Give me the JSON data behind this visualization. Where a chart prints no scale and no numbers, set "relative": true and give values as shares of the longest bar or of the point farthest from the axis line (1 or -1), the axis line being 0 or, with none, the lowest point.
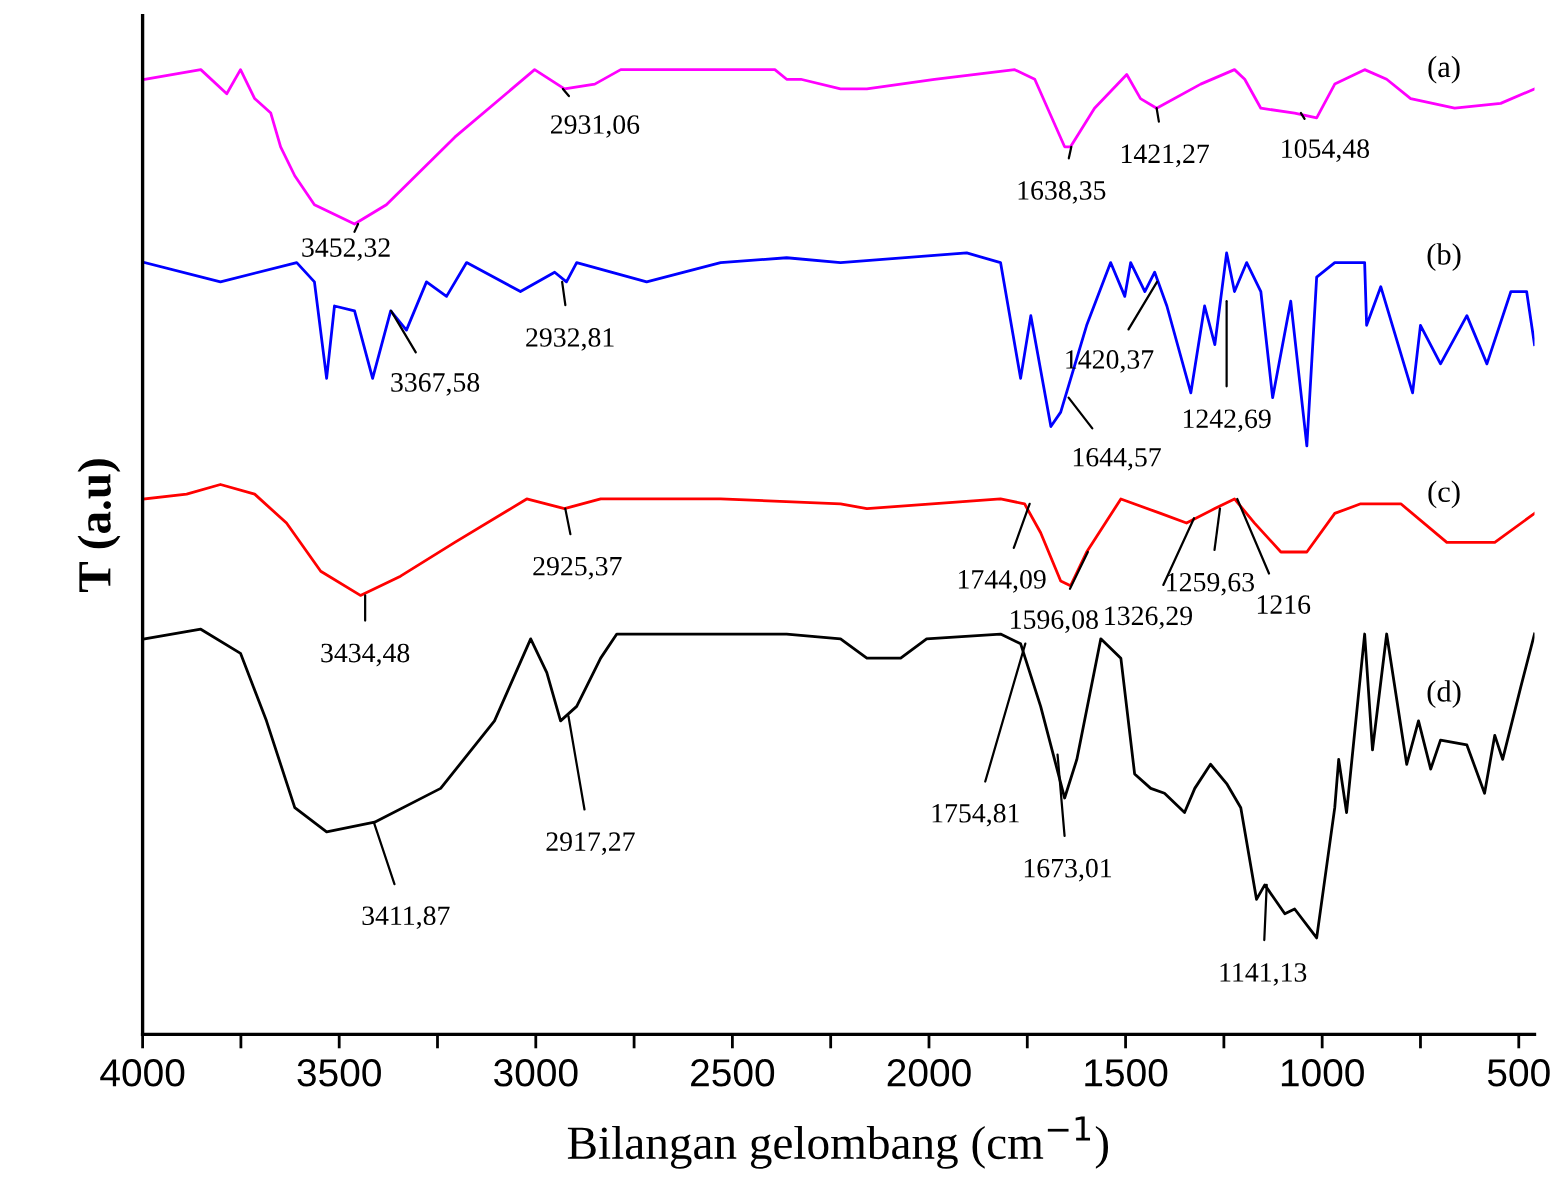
{
  "chart_data": {
    "type": "line",
    "relative": true,
    "xlabel": "Bilangan gelombang (cm$^{−1}$)",
    "ylabel": "T (a.u)",
    "xlim": [
      4000,
      460
    ],
    "xticks": [
      4000,
      {
        "value": 3750,
        "label": null
      },
      3500,
      {
        "value": 3250,
        "label": null
      },
      3000,
      {
        "value": 2750,
        "label": null
      },
      2500,
      {
        "value": 2250,
        "label": null
      },
      2000,
      {
        "value": 1750,
        "label": null
      },
      1500,
      {
        "value": 1250,
        "label": null
      },
      1000,
      {
        "value": 750,
        "label": null
      },
      500
    ],
    "grid": false,
    "legend": false,
    "marker": "none",
    "line_style": "solid",
    "series": [
      {
        "name": "(a)",
        "color": "#ff00ff",
        "x": [
          3995,
          3852,
          3786,
          3751,
          3715,
          3674,
          3649,
          3613,
          3563,
          3461,
          3380,
          3206,
          3003,
          2927,
          2850,
          2784,
          2616,
          2392,
          2362,
          2326,
          2225,
          2158,
          1986,
          1782,
          1731,
          1655,
          1640,
          1579,
          1497,
          1462,
          1421,
          1309,
          1223,
          1197,
          1156,
          1070,
          1014,
          968,
          892,
          836,
          775,
          663,
          546,
          460
        ],
        "values": [
          0.99,
          1.0,
          0.975,
          1.0,
          0.97,
          0.955,
          0.92,
          0.89,
          0.86,
          0.84,
          0.86,
          0.93,
          1.0,
          0.98,
          0.985,
          1.0,
          1.0,
          1.0,
          0.99,
          0.99,
          0.98,
          0.98,
          0.99,
          1.0,
          0.99,
          0.92,
          0.92,
          0.96,
          0.995,
          0.97,
          0.96,
          0.985,
          1.0,
          0.99,
          0.96,
          0.955,
          0.95,
          0.985,
          1.0,
          0.99,
          0.97,
          0.96,
          0.965,
          0.98
        ]
      },
      {
        "name": "(b)",
        "color": "#0000ff",
        "x": [
          3995,
          3802,
          3608,
          3563,
          3532,
          3512,
          3461,
          3415,
          3369,
          3329,
          3278,
          3227,
          3176,
          3039,
          2952,
          2922,
          2896,
          2718,
          2530,
          2362,
          2225,
          1904,
          1818,
          1767,
          1741,
          1690,
          1665,
          1599,
          1538,
          1502,
          1487,
          1451,
          1426,
          1395,
          1334,
          1299,
          1273,
          1243,
          1223,
          1192,
          1156,
          1126,
          1080,
          1039,
          1014,
          968,
          892,
          887,
          851,
          770,
          750,
          699,
          632,
          581,
          520,
          480,
          460
        ],
        "values": [
          0.8,
          0.78,
          0.8,
          0.78,
          0.68,
          0.755,
          0.75,
          0.68,
          0.75,
          0.73,
          0.78,
          0.765,
          0.8,
          0.77,
          0.79,
          0.78,
          0.8,
          0.78,
          0.8,
          0.805,
          0.8,
          0.81,
          0.8,
          0.68,
          0.745,
          0.63,
          0.645,
          0.735,
          0.8,
          0.765,
          0.8,
          0.77,
          0.79,
          0.755,
          0.665,
          0.755,
          0.715,
          0.81,
          0.77,
          0.8,
          0.77,
          0.66,
          0.76,
          0.61,
          0.785,
          0.8,
          0.8,
          0.735,
          0.775,
          0.665,
          0.735,
          0.695,
          0.745,
          0.695,
          0.77,
          0.77,
          0.715
        ]
      },
      {
        "name": "(c)",
        "color": "#ff0000",
        "x": [
          3995,
          3888,
          3802,
          3715,
          3634,
          3547,
          3446,
          3344,
          3206,
          3023,
          2927,
          2835,
          2530,
          2225,
          2158,
          1818,
          1757,
          1716,
          1665,
          1640,
          1599,
          1512,
          1411,
          1345,
          1273,
          1223,
          1172,
          1105,
          1039,
          968,
          902,
          800,
          683,
          561,
          460
        ],
        "values": [
          0.555,
          0.56,
          0.57,
          0.56,
          0.53,
          0.48,
          0.455,
          0.475,
          0.51,
          0.555,
          0.545,
          0.555,
          0.555,
          0.55,
          0.545,
          0.555,
          0.55,
          0.52,
          0.47,
          0.465,
          0.5,
          0.555,
          0.54,
          0.53,
          0.545,
          0.555,
          0.53,
          0.5,
          0.5,
          0.54,
          0.55,
          0.55,
          0.51,
          0.51,
          0.54
        ]
      },
      {
        "name": "(d)",
        "color": "#000000",
        "x": [
          3995,
          3852,
          3751,
          3685,
          3613,
          3532,
          3410,
          3242,
          3105,
          3013,
          2972,
          2937,
          2896,
          2835,
          2794,
          2616,
          2362,
          2225,
          2158,
          2072,
          2006,
          1818,
          1767,
          1716,
          1655,
          1624,
          1563,
          1512,
          1477,
          1436,
          1401,
          1350,
          1324,
          1284,
          1243,
          1207,
          1167,
          1146,
          1095,
          1070,
          1014,
          968,
          958,
          938,
          892,
          872,
          836,
          785,
          755,
          724,
          699,
          632,
          587,
          561,
          541,
          495,
          460
        ],
        "values": [
          0.41,
          0.42,
          0.395,
          0.325,
          0.235,
          0.21,
          0.22,
          0.255,
          0.325,
          0.41,
          0.375,
          0.325,
          0.34,
          0.39,
          0.415,
          0.415,
          0.415,
          0.41,
          0.39,
          0.39,
          0.41,
          0.415,
          0.405,
          0.34,
          0.245,
          0.285,
          0.41,
          0.39,
          0.27,
          0.255,
          0.25,
          0.23,
          0.255,
          0.28,
          0.26,
          0.235,
          0.14,
          0.155,
          0.125,
          0.13,
          0.1,
          0.235,
          0.285,
          0.23,
          0.415,
          0.295,
          0.415,
          0.28,
          0.325,
          0.275,
          0.305,
          0.3,
          0.25,
          0.31,
          0.285,
          0.36,
          0.415
        ]
      }
    ],
    "annotations": [
      {
        "text": "3452,32",
        "x": 3452,
        "y": 0.84
      },
      {
        "text": "2931,06",
        "x": 2931,
        "y": 0.98
      },
      {
        "text": "1638,35",
        "x": 1638,
        "y": 0.92
      },
      {
        "text": "1421,27",
        "x": 1421,
        "y": 0.96
      },
      {
        "text": "1054,48",
        "x": 1054,
        "y": 0.955
      },
      {
        "text": "3367,58",
        "x": 3368,
        "y": 0.75
      },
      {
        "text": "2932,81",
        "x": 2933,
        "y": 0.78
      },
      {
        "text": "1420,37",
        "x": 1420,
        "y": 0.78
      },
      {
        "text": "1242,69",
        "x": 1243,
        "y": 0.76
      },
      {
        "text": "1644,57",
        "x": 1645,
        "y": 0.66
      },
      {
        "text": "3434,48",
        "x": 3434,
        "y": 0.455
      },
      {
        "text": "2925,37",
        "x": 2925,
        "y": 0.545
      },
      {
        "text": "1744,09",
        "x": 1744,
        "y": 0.55
      },
      {
        "text": "1596,08",
        "x": 1596,
        "y": 0.5
      },
      {
        "text": "1326,29",
        "x": 1326,
        "y": 0.535
      },
      {
        "text": "1259,63",
        "x": 1260,
        "y": 0.545
      },
      {
        "text": "1216",
        "x": 1216,
        "y": 0.555
      },
      {
        "text": "3411,87",
        "x": 3412,
        "y": 0.22
      },
      {
        "text": "2917,27",
        "x": 2917,
        "y": 0.33
      },
      {
        "text": "1754,81",
        "x": 1755,
        "y": 0.405
      },
      {
        "text": "1673,01",
        "x": 1673,
        "y": 0.29
      },
      {
        "text": "1141,13",
        "x": 1141,
        "y": 0.155
      }
    ]
  }
}
